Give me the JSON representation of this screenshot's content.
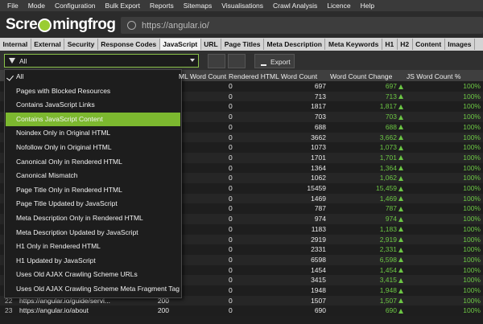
{
  "menu": [
    "File",
    "Mode",
    "Configuration",
    "Bulk Export",
    "Reports",
    "Sitemaps",
    "Visualisations",
    "Crawl Analysis",
    "Licence",
    "Help"
  ],
  "logo": [
    "Scre",
    "mingfrog"
  ],
  "address": "https://angular.io/",
  "tabs": [
    "Internal",
    "External",
    "Security",
    "Response Codes",
    "JavaScript",
    "URL",
    "Page Titles",
    "Meta Description",
    "Meta Keywords",
    "H1",
    "H2",
    "Content",
    "Images"
  ],
  "filter": {
    "selected": "All",
    "export": "Export"
  },
  "dropdown": [
    "All",
    "Pages with Blocked Resources",
    "Contains JavaScript Links",
    "Contains JavaScript Content",
    "Noindex Only in Original HTML",
    "Nofollow Only in Original HTML",
    "Canonical Only in Rendered HTML",
    "Canonical Mismatch",
    "Page Title Only in Rendered HTML",
    "Page Title Updated by JavaScript",
    "Meta Description Only in Rendered HTML",
    "Meta Description Updated by JavaScript",
    "H1 Only in Rendered HTML",
    "H1 Updated by JavaScript",
    "Uses Old AJAX Crawling Scheme URLs",
    "Uses Old AJAX Crawling Scheme Meta Fragment Tag"
  ],
  "table": {
    "columns": [
      "ML Word Count",
      "Rendered HTML Word Count",
      "Word Count Change",
      "JS Word Count %"
    ],
    "rows": [
      [
        "0",
        "697",
        "697",
        "100%"
      ],
      [
        "0",
        "713",
        "713",
        "100%"
      ],
      [
        "0",
        "1817",
        "1,817",
        "100%"
      ],
      [
        "0",
        "703",
        "703",
        "100%"
      ],
      [
        "0",
        "688",
        "688",
        "100%"
      ],
      [
        "0",
        "3662",
        "3,662",
        "100%"
      ],
      [
        "0",
        "1073",
        "1,073",
        "100%"
      ],
      [
        "0",
        "1701",
        "1,701",
        "100%"
      ],
      [
        "0",
        "1364",
        "1,364",
        "100%"
      ],
      [
        "0",
        "1062",
        "1,062",
        "100%"
      ],
      [
        "0",
        "15459",
        "15,459",
        "100%"
      ],
      [
        "0",
        "1469",
        "1,469",
        "100%"
      ],
      [
        "0",
        "787",
        "787",
        "100%"
      ],
      [
        "0",
        "974",
        "974",
        "100%"
      ],
      [
        "0",
        "1183",
        "1,183",
        "100%"
      ],
      [
        "0",
        "2919",
        "2,919",
        "100%"
      ],
      [
        "0",
        "2331",
        "2,331",
        "100%"
      ],
      [
        "0",
        "6598",
        "6,598",
        "100%"
      ],
      [
        "0",
        "1454",
        "1,454",
        "100%"
      ],
      [
        "0",
        "3415",
        "3,415",
        "100%"
      ],
      [
        "0",
        "1948",
        "1,948",
        "100%"
      ],
      [
        "0",
        "1507",
        "1,507",
        "100%"
      ],
      [
        "0",
        "690",
        "690",
        "100%"
      ]
    ],
    "left_rows": {
      "21": [
        "22",
        "https://angular.io/guide/servi...",
        "200"
      ],
      "22": [
        "23",
        "https://angular.io/about",
        "200"
      ]
    }
  }
}
